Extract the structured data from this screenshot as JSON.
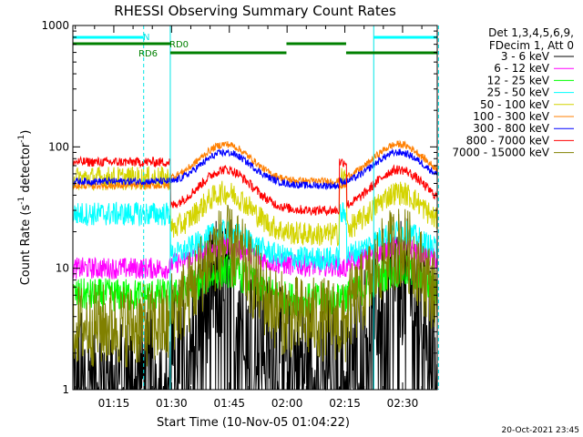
{
  "chart_data": {
    "type": "line",
    "title": "RHESSI Observing Summary Count Rates",
    "xlabel": "Start Time (10-Nov-05 01:04:22)",
    "ylabel_main": "Count Rate (s",
    "ylabel_sup1": "-1",
    "ylabel_mid": " detector",
    "ylabel_sup2": "-1",
    "ylabel_end": ")",
    "y_scale": "log",
    "ylim": [
      1,
      1000
    ],
    "xlim": [
      "01:04:22",
      "02:39:00"
    ],
    "x_ticks": [
      "01:15",
      "01:30",
      "01:45",
      "02:00",
      "02:15",
      "02:30"
    ],
    "y_ticks": [
      "1",
      "10",
      "100",
      "1000"
    ],
    "info_lines": [
      "Det 1,3,4,5,6,9,",
      "FDecim 1, Att 0"
    ],
    "footer": "20-Oct-2021 23:45",
    "flag_labels": {
      "n": "N",
      "rd0": "RD0",
      "rd6": "RD6"
    },
    "series": [
      {
        "name": "3 - 6 keV",
        "color": "#000000",
        "night": 1.3,
        "day": 1.7,
        "peak": 8.0,
        "noise": 0.55
      },
      {
        "name": "6 - 12 keV",
        "color": "#ff00ff",
        "night": 10,
        "day": 10.5,
        "peak": 15,
        "noise": 0.09
      },
      {
        "name": "12 - 25 keV",
        "color": "#00ff00",
        "night": 6,
        "day": 5.5,
        "peak": 9.5,
        "noise": 0.14
      },
      {
        "name": "25 - 50 keV",
        "color": "#00ffff",
        "night": 28,
        "day": 12,
        "peak": 20,
        "noise": 0.1
      },
      {
        "name": "50 - 100 keV",
        "color": "#d4d400",
        "night": 55,
        "day": 19,
        "peak": 42,
        "noise": 0.1
      },
      {
        "name": "100 - 300 keV",
        "color": "#ff7f00",
        "night": 48,
        "day": 52,
        "peak": 105,
        "noise": 0.03
      },
      {
        "name": "300 - 800 keV",
        "color": "#0000ff",
        "night": 52,
        "day": 48,
        "peak": 90,
        "noise": 0.03
      },
      {
        "name": "800 - 7000 keV",
        "color": "#ff0000",
        "night": 75,
        "day": 30,
        "peak": 65,
        "noise": 0.04
      },
      {
        "name": "7000 - 15000 keV",
        "color": "#808000",
        "night": 3.4,
        "day": 3.8,
        "peak": 15,
        "noise": 0.35
      }
    ],
    "day_intervals": [
      [
        "01:29:45",
        "02:13:30"
      ],
      [
        "02:15:30",
        "02:40:00"
      ]
    ],
    "night_intervals": [
      [
        "01:04:22",
        "01:29:40"
      ],
      [
        "01:59:50",
        "02:15:20"
      ]
    ],
    "saa_markers": [
      "01:04:22",
      "01:29:40",
      "02:22:30"
    ],
    "saa_dashed": [
      "01:22:45",
      "02:39:20"
    ],
    "flags": {
      "n_segments": [
        [
          "01:04:22",
          "01:22:45"
        ],
        [
          "02:22:30",
          "02:39:00"
        ]
      ],
      "rd0_segments": [
        [
          "01:04:22",
          "01:29:40"
        ],
        [
          "01:59:50",
          "02:15:20"
        ]
      ],
      "rd6_segments": [
        [
          "01:29:40",
          "01:59:50"
        ],
        [
          "02:15:20",
          "02:39:00"
        ]
      ]
    }
  }
}
